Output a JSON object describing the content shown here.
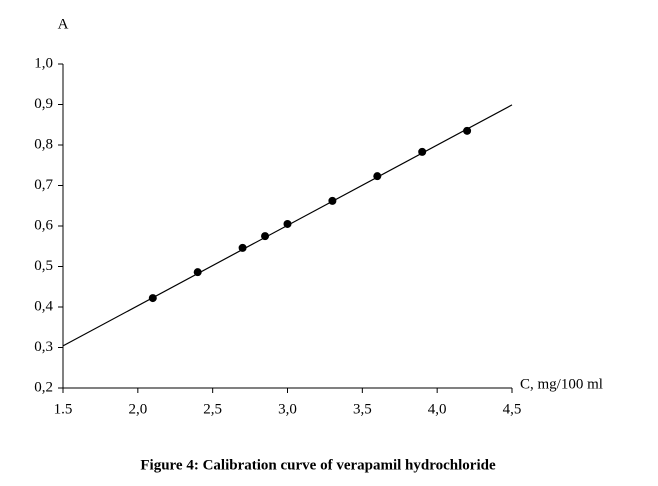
{
  "chart_data": {
    "type": "scatter",
    "caption": "Figure 4: Calibration curve of verapamil hydrochloride",
    "y_label": "A",
    "x_label": "C, mg/100 ml",
    "x": [
      2.1,
      2.4,
      2.7,
      2.85,
      3.0,
      3.3,
      3.6,
      3.9,
      4.2
    ],
    "values": [
      0.422,
      0.486,
      0.546,
      0.575,
      0.605,
      0.662,
      0.723,
      0.783,
      0.835
    ],
    "color": "#000000",
    "trendline": {
      "x": [
        1.5,
        4.5
      ],
      "values": [
        0.304,
        0.899
      ],
      "color": "#000000"
    },
    "xlim": [
      1.5,
      4.5
    ],
    "xticks": [
      1.5,
      {
        "value": 2,
        "label": "2,0"
      },
      {
        "value": 2.5,
        "label": "2,5"
      },
      {
        "value": 3,
        "label": "3,0"
      },
      {
        "value": 3.5,
        "label": "3,5"
      },
      {
        "value": 4,
        "label": "4,0"
      },
      {
        "value": 4.5,
        "label": "4,5"
      }
    ],
    "ylim": [
      0.2,
      1.0
    ],
    "yticks": [
      {
        "value": 0.2,
        "label": "0,2"
      },
      {
        "value": 0.3,
        "label": "0,3"
      },
      {
        "value": 0.4,
        "label": "0,4"
      },
      {
        "value": 0.5,
        "label": "0,5"
      },
      {
        "value": 0.6,
        "label": "0,6"
      },
      {
        "value": 0.7,
        "label": "0,7"
      },
      {
        "value": 0.8,
        "label": "0,8"
      },
      {
        "value": 0.9,
        "label": "0,9"
      },
      {
        "value": 1.0,
        "label": "1,0"
      }
    ],
    "grid": false
  }
}
